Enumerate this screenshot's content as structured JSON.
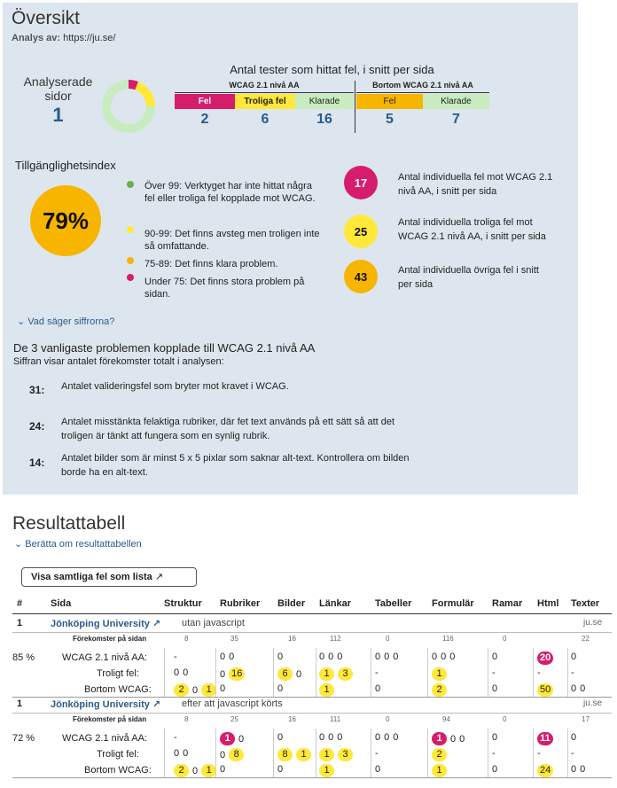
{
  "overview": {
    "title": "Översikt",
    "analysed_label": "Analys av:",
    "analysed_url": "https://ju.se/",
    "pages_label_1": "Analyserade",
    "pages_label_2": "sidor",
    "pages_value": "1",
    "donut_fractions": {
      "fel": 0.06,
      "troliga": 0.19,
      "klarade": 0.75
    },
    "tests_title": "Antal tester som hittat fel, i snitt per sida",
    "wcag_header": "WCAG 2.1 nivå AA",
    "beyond_header": "Bortom WCAG 2.1 nivå AA",
    "col_fel": "Fel",
    "col_troliga": "Troliga fel",
    "col_klarade": "Klarade",
    "col_fel2": "Fel",
    "col_klarade2": "Klarade",
    "val_fel": "2",
    "val_troliga": "6",
    "val_klarade": "16",
    "val_fel2": "5",
    "val_klarade2": "7",
    "index_title": "Tillgänglighetsindex",
    "index_value": "79%",
    "legend": [
      {
        "color": "#6ab04c",
        "text": "Över 99: Verktyget har inte hittat några fel eller troliga fel kopplade mot WCAG."
      },
      {
        "color": "#ffe83a",
        "text": "90-99: Det finns avsteg men troligen inte så omfattande."
      },
      {
        "color": "#f7b500",
        "text": "75-89: Det finns klara problem."
      },
      {
        "color": "#d61d6c",
        "text": "Under 75: Det finns stora problem på sidan."
      }
    ],
    "stats": [
      {
        "value": "17",
        "text": "Antal individuella fel mot WCAG 2.1 nivå AA, i snitt per sida"
      },
      {
        "value": "25",
        "text": "Antal individuella troliga fel mot WCAG 2.1 nivå AA, i snitt per sida"
      },
      {
        "value": "43",
        "text": "Antal individuella övriga fel i snitt per sida"
      }
    ],
    "expander": "Vad säger siffrorna?",
    "top_title": "De 3 vanligaste problemen kopplade till WCAG 2.1 nivå AA",
    "top_sub": "Siffran visar antalet förekomster totalt i analysen:",
    "top": [
      {
        "count": "31:",
        "text": "Antalet valideringsfel som bryter mot kravet i WCAG."
      },
      {
        "count": "24:",
        "text": "Antalet misstänkta felaktiga rubriker, där fet text används på ett sätt så att det troligen är tänkt att fungera som en synlig rubrik."
      },
      {
        "count": "14:",
        "text": "Antalet bilder som är minst 5 x 5 pixlar som saknar alt-text. Kontrollera om bilden borde ha en alt-text."
      }
    ]
  },
  "results": {
    "title": "Resultattabell",
    "expander": "Berätta om resultattabellen",
    "list_button": "Visa samtliga fel som lista",
    "headers": [
      "#",
      "Sida",
      "Struktur",
      "Rubriker",
      "Bilder",
      "Länkar",
      "Tabeller",
      "Formulär",
      "Ramar",
      "Html",
      "Texter"
    ],
    "rows": [
      {
        "num": "1",
        "site": "Jönköping University",
        "note": "utan javascript",
        "domain": "ju.se",
        "percent": "85 %",
        "occ_label": "Förekomster på sidan",
        "occ": [
          "8",
          "35",
          "16",
          "112",
          "0",
          "116",
          "0",
          "",
          "22"
        ],
        "wcag_label": "WCAG 2.1 nivå AA:",
        "wcag": [
          [
            "-"
          ],
          [
            "0",
            "0"
          ],
          [
            "0"
          ],
          [
            "0",
            "0",
            "0"
          ],
          [
            "0",
            "0",
            "0"
          ],
          [
            "0",
            "0",
            "0"
          ],
          [
            "0"
          ],
          [
            "20r"
          ],
          [
            "0"
          ]
        ],
        "likely_label": "Troligt fel:",
        "likely": [
          [
            "0",
            "0"
          ],
          [
            "0",
            "16y"
          ],
          [
            "6y",
            "0"
          ],
          [
            "1y",
            "3y"
          ],
          [
            "-"
          ],
          [
            "1y"
          ],
          [
            "-"
          ],
          [
            "-"
          ],
          [
            "-"
          ]
        ],
        "beyond_label": "Bortom WCAG:",
        "beyond": [
          [
            "2y",
            "0",
            "1y"
          ],
          [
            "0"
          ],
          [
            "0"
          ],
          [
            "1y"
          ],
          [
            "0"
          ],
          [
            "2y"
          ],
          [
            "0"
          ],
          [
            "50y"
          ],
          [
            "0",
            "0"
          ]
        ]
      },
      {
        "num": "1",
        "site": "Jönköping University",
        "note": "efter att javascript körts",
        "domain": "ju.se",
        "percent": "72 %",
        "occ_label": "Förekomster på sidan",
        "occ": [
          "8",
          "25",
          "16",
          "111",
          "0",
          "94",
          "0",
          "",
          "17"
        ],
        "wcag_label": "WCAG 2.1 nivå AA:",
        "wcag": [
          [
            "-"
          ],
          [
            "1r",
            "0"
          ],
          [
            "0"
          ],
          [
            "0",
            "0",
            "0"
          ],
          [
            "0",
            "0",
            "0"
          ],
          [
            "1r",
            "0",
            "0"
          ],
          [
            "0"
          ],
          [
            "11r"
          ],
          [
            "0"
          ]
        ],
        "likely_label": "Troligt fel:",
        "likely": [
          [
            "0",
            "0"
          ],
          [
            "0",
            "8y"
          ],
          [
            "8y",
            "1y"
          ],
          [
            "1y",
            "3y"
          ],
          [
            "-"
          ],
          [
            "2y"
          ],
          [
            "-"
          ],
          [
            "-"
          ],
          [
            "-"
          ]
        ],
        "beyond_label": "Bortom WCAG:",
        "beyond": [
          [
            "2y",
            "0",
            "1y"
          ],
          [
            "0"
          ],
          [
            "0"
          ],
          [
            "1y"
          ],
          [
            "0"
          ],
          [
            "1y"
          ],
          [
            "0"
          ],
          [
            "24y"
          ],
          [
            "0",
            "0"
          ]
        ]
      }
    ]
  },
  "colors": {
    "fel": "#d61d6c",
    "troliga": "#ffe83a",
    "klarade": "#c8ecc0",
    "beyond_fel": "#f7b500",
    "link": "#2a5b8a"
  }
}
